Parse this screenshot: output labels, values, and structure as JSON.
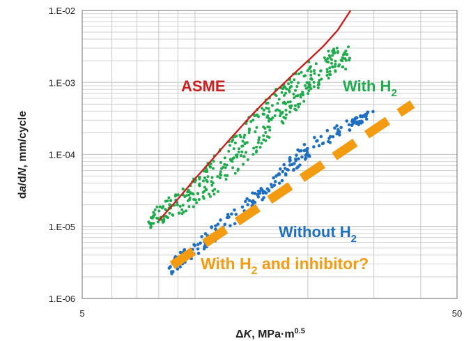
{
  "chart_data": {
    "type": "scatter",
    "title": "",
    "xlabel": {
      "prefix": "Δ",
      "italic": "K",
      "suffix": ", MPa·m",
      "sup": "0.5"
    },
    "ylabel": {
      "p1": "d",
      "i1": "a",
      "p2": "/d",
      "i2": "N",
      "p3": ", mm/cycle"
    },
    "xscale": "log",
    "yscale": "log",
    "xlim": [
      5,
      50
    ],
    "ylim": [
      1e-06,
      0.01
    ],
    "x_ticks": [
      {
        "value": 5,
        "label": "5"
      },
      {
        "value": 50,
        "label": "50"
      }
    ],
    "y_ticks": [
      {
        "value": 1e-06,
        "label": "1.E-06"
      },
      {
        "value": 1e-05,
        "label": "1.E-05"
      },
      {
        "value": 0.0001,
        "label": "1.E-04"
      },
      {
        "value": 0.001,
        "label": "1.E-03"
      },
      {
        "value": 0.01,
        "label": "1.E-02"
      }
    ],
    "grid": true,
    "colors": {
      "asme": "#c8201e",
      "with_h2": "#1faa4b",
      "without_h2": "#1f6fc1",
      "inhibitor": "#f39c12",
      "grid": "#c8c8c8",
      "frame": "#888888"
    },
    "series": [
      {
        "name": "ASME",
        "kind": "line",
        "x": [
          8.0,
          9.0,
          10.0,
          11.0,
          12.0,
          13.0,
          14.0,
          15.0,
          16.0,
          17.0,
          18.0,
          20.0,
          22.0,
          24.0,
          26.0
        ],
        "y": [
          1.2e-05,
          2.4e-05,
          4.6e-05,
          8e-05,
          0.000135,
          0.000215,
          0.00033,
          0.00048,
          0.00067,
          0.0009,
          0.0012,
          0.002,
          0.0032,
          0.0053,
          0.01
        ]
      },
      {
        "name": "With H2",
        "kind": "scatter",
        "band": {
          "lower": {
            "x": [
              7.5,
              9.5,
              11.5,
              13.5,
              15.5,
              17.5,
              20.0,
              24.0
            ],
            "y": [
              9e-06,
              1.6e-05,
              3e-05,
              7e-05,
              0.00015,
              0.0003,
              0.0006,
              0.0015
            ]
          },
          "upper": {
            "x": [
              7.5,
              9.5,
              11.5,
              13.5,
              15.5,
              17.5,
              20.0,
              24.0
            ],
            "y": [
              1.5e-05,
              4e-05,
              0.00011,
              0.00028,
              0.0006,
              0.0011,
              0.0019,
              0.0032
            ]
          },
          "x_range": [
            7.5,
            26.0
          ],
          "count": 420
        }
      },
      {
        "name": "Without H2",
        "kind": "scatter",
        "band": {
          "lower": {
            "x": [
              8.5,
              12.0,
              16.0,
              20.0,
              26.0,
              30.0
            ],
            "y": [
              2e-06,
              8e-06,
              3e-05,
              9e-05,
              0.00022,
              0.00033
            ]
          },
          "upper": {
            "x": [
              8.5,
              12.0,
              16.0,
              20.0,
              26.0,
              30.0
            ],
            "y": [
              3.3e-06,
              1.4e-05,
              5.2e-05,
              0.00016,
              0.00032,
              0.00042
            ]
          },
          "x_range": [
            8.5,
            30.0
          ],
          "count": 220
        }
      },
      {
        "name": "With H2 and inhibitor?",
        "kind": "dashed-line",
        "x": [
          8.7,
          38.0
        ],
        "y": [
          2.9e-06,
          0.0005
        ]
      }
    ],
    "annotations": {
      "asme": {
        "text": "ASME"
      },
      "with_h2": {
        "text": "With H",
        "sub": "2"
      },
      "without_h2": {
        "text": "Without H",
        "sub": "2"
      },
      "inhibitor": {
        "text": "With H",
        "sub": "2",
        "tail": " and inhibitor?"
      }
    }
  }
}
